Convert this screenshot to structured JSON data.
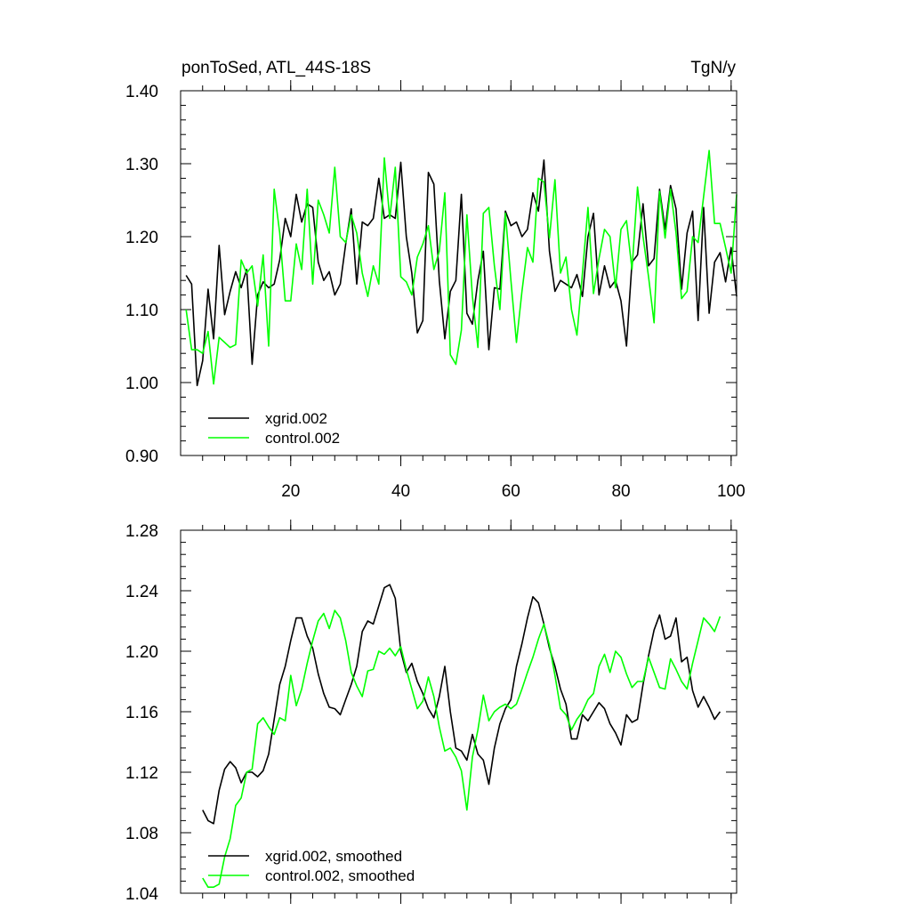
{
  "chart_data": [
    {
      "type": "line",
      "title_left": "ponToSed, ATL_44S-18S",
      "title_right": "TgN/y",
      "xlabel": "",
      "ylabel": "",
      "xlim": [
        0,
        101
      ],
      "ylim": [
        0.9,
        1.4
      ],
      "x_ticks": [
        20,
        40,
        60,
        80,
        100
      ],
      "x_tick_labels": [
        "20",
        "40",
        "60",
        "80",
        "100"
      ],
      "y_ticks": [
        0.9,
        1.0,
        1.1,
        1.2,
        1.3,
        1.4
      ],
      "y_tick_labels": [
        "0.90",
        "1.00",
        "1.10",
        "1.20",
        "1.30",
        "1.40"
      ],
      "x_minor_step": 4,
      "y_minor_step": 0.02,
      "grid": false,
      "legend_position": "bottom-left",
      "x_start": 1,
      "series": [
        {
          "name": "xgrid.002",
          "color": "#000000",
          "values": [
            1.147,
            1.135,
            0.996,
            1.03,
            1.128,
            1.06,
            1.188,
            1.093,
            1.125,
            1.152,
            1.13,
            1.155,
            1.025,
            1.12,
            1.138,
            1.13,
            1.135,
            1.168,
            1.225,
            1.2,
            1.258,
            1.22,
            1.245,
            1.24,
            1.165,
            1.14,
            1.152,
            1.12,
            1.135,
            1.19,
            1.238,
            1.135,
            1.22,
            1.215,
            1.225,
            1.28,
            1.225,
            1.23,
            1.225,
            1.302,
            1.2,
            1.15,
            1.068,
            1.085,
            1.288,
            1.272,
            1.14,
            1.06,
            1.125,
            1.14,
            1.258,
            1.095,
            1.08,
            1.14,
            1.18,
            1.045,
            1.13,
            1.128,
            1.235,
            1.215,
            1.22,
            1.2,
            1.21,
            1.26,
            1.235,
            1.305,
            1.18,
            1.125,
            1.14,
            1.135,
            1.13,
            1.148,
            1.118,
            1.2,
            1.232,
            1.12,
            1.16,
            1.13,
            1.14,
            1.112,
            1.05,
            1.165,
            1.175,
            1.245,
            1.16,
            1.17,
            1.265,
            1.21,
            1.27,
            1.238,
            1.128,
            1.205,
            1.235,
            1.085,
            1.24,
            1.095,
            1.165,
            1.178,
            1.138,
            1.185,
            1.118
          ]
        },
        {
          "name": "control.002",
          "color": "#00ff00",
          "values": [
            1.1,
            1.045,
            1.045,
            1.04,
            1.07,
            0.998,
            1.062,
            1.055,
            1.048,
            1.052,
            1.168,
            1.15,
            1.16,
            1.105,
            1.175,
            1.05,
            1.265,
            1.205,
            1.112,
            1.112,
            1.19,
            1.155,
            1.265,
            1.135,
            1.25,
            1.23,
            1.205,
            1.295,
            1.2,
            1.192,
            1.23,
            1.205,
            1.15,
            1.118,
            1.16,
            1.135,
            1.308,
            1.225,
            1.295,
            1.145,
            1.138,
            1.12,
            1.172,
            1.19,
            1.215,
            1.155,
            1.18,
            1.26,
            1.038,
            1.025,
            1.072,
            1.23,
            1.118,
            1.048,
            1.232,
            1.24,
            1.16,
            1.1,
            1.232,
            1.14,
            1.055,
            1.125,
            1.185,
            1.165,
            1.28,
            1.275,
            1.198,
            1.278,
            1.15,
            1.172,
            1.1,
            1.065,
            1.15,
            1.24,
            1.122,
            1.17,
            1.21,
            1.2,
            1.13,
            1.21,
            1.222,
            1.155,
            1.268,
            1.2,
            1.145,
            1.082,
            1.262,
            1.198,
            1.265,
            1.205,
            1.115,
            1.125,
            1.2,
            1.192,
            1.255,
            1.318,
            1.218,
            1.218,
            1.185,
            1.15,
            1.258
          ]
        }
      ]
    },
    {
      "type": "line",
      "xlabel": "",
      "ylabel": "",
      "xlim": [
        0,
        101
      ],
      "ylim": [
        1.04,
        1.28
      ],
      "x_ticks": [
        20,
        40,
        60,
        80,
        100
      ],
      "y_ticks": [
        1.04,
        1.08,
        1.12,
        1.16,
        1.2,
        1.24,
        1.28
      ],
      "y_tick_labels": [
        "1.04",
        "1.08",
        "1.12",
        "1.16",
        "1.20",
        "1.24",
        "1.28"
      ],
      "x_minor_step": 4,
      "y_minor_step": 0.008,
      "grid": false,
      "legend_position": "bottom-left",
      "x_start": 4,
      "series": [
        {
          "name": "xgrid.002, smoothed",
          "color": "#000000",
          "values": [
            1.095,
            1.088,
            1.086,
            1.108,
            1.122,
            1.127,
            1.123,
            1.113,
            1.12,
            1.12,
            1.117,
            1.121,
            1.132,
            1.155,
            1.178,
            1.19,
            1.207,
            1.222,
            1.222,
            1.21,
            1.202,
            1.185,
            1.172,
            1.163,
            1.162,
            1.158,
            1.168,
            1.178,
            1.19,
            1.213,
            1.22,
            1.218,
            1.23,
            1.242,
            1.244,
            1.235,
            1.2,
            1.186,
            1.192,
            1.18,
            1.172,
            1.162,
            1.156,
            1.17,
            1.19,
            1.16,
            1.136,
            1.134,
            1.128,
            1.145,
            1.132,
            1.128,
            1.112,
            1.136,
            1.152,
            1.162,
            1.168,
            1.19,
            1.205,
            1.222,
            1.236,
            1.232,
            1.218,
            1.202,
            1.19,
            1.175,
            1.165,
            1.142,
            1.142,
            1.158,
            1.154,
            1.16,
            1.166,
            1.162,
            1.152,
            1.146,
            1.138,
            1.158,
            1.153,
            1.155,
            1.178,
            1.197,
            1.214,
            1.224,
            1.208,
            1.21,
            1.222,
            1.193,
            1.196,
            1.174,
            1.163,
            1.17,
            1.163,
            1.155,
            1.16
          ]
        },
        {
          "name": "control.002, smoothed",
          "color": "#00ff00",
          "values": [
            1.05,
            1.044,
            1.044,
            1.046,
            1.064,
            1.076,
            1.098,
            1.103,
            1.12,
            1.122,
            1.152,
            1.156,
            1.15,
            1.145,
            1.156,
            1.154,
            1.184,
            1.164,
            1.175,
            1.192,
            1.207,
            1.22,
            1.225,
            1.215,
            1.227,
            1.222,
            1.207,
            1.186,
            1.177,
            1.17,
            1.187,
            1.188,
            1.2,
            1.198,
            1.202,
            1.197,
            1.203,
            1.188,
            1.175,
            1.162,
            1.167,
            1.183,
            1.17,
            1.15,
            1.134,
            1.136,
            1.13,
            1.121,
            1.095,
            1.13,
            1.148,
            1.171,
            1.154,
            1.16,
            1.163,
            1.165,
            1.162,
            1.165,
            1.175,
            1.186,
            1.196,
            1.208,
            1.218,
            1.204,
            1.184,
            1.162,
            1.158,
            1.148,
            1.155,
            1.16,
            1.168,
            1.172,
            1.19,
            1.198,
            1.186,
            1.2,
            1.196,
            1.185,
            1.176,
            1.18,
            1.18,
            1.196,
            1.186,
            1.176,
            1.175,
            1.195,
            1.188,
            1.18,
            1.175,
            1.192,
            1.207,
            1.222,
            1.218,
            1.213,
            1.223
          ]
        }
      ]
    }
  ]
}
